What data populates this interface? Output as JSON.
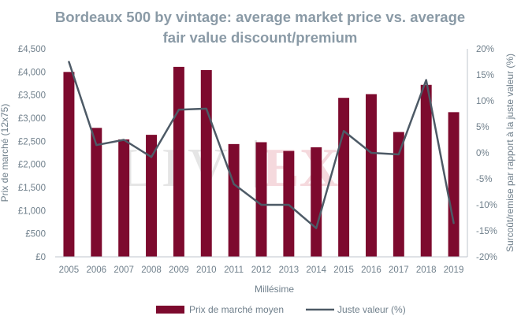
{
  "chart_data": {
    "type": "bar+line",
    "title_lines": [
      "Bordeaux 500 by vintage: average market price vs. average",
      "fair value discount/premium"
    ],
    "categories": [
      "2005",
      "2006",
      "2007",
      "2008",
      "2009",
      "2010",
      "2011",
      "2012",
      "2013",
      "2014",
      "2015",
      "2016",
      "2017",
      "2018",
      "2019"
    ],
    "series": [
      {
        "name": "Prix de marché moyen",
        "kind": "bar",
        "axis": "left",
        "color": "#7d0a2e",
        "values": [
          4000,
          2790,
          2540,
          2640,
          4110,
          4040,
          2440,
          2480,
          2290,
          2370,
          3440,
          3520,
          2700,
          3720,
          3130
        ]
      },
      {
        "name": "Juste valeur (%)",
        "kind": "line",
        "axis": "right",
        "color": "#4d5a66",
        "values": [
          17.5,
          1.5,
          2.5,
          -0.8,
          8.3,
          8.5,
          -6.0,
          -10.0,
          -10.0,
          -14.5,
          4.2,
          0.0,
          -0.3,
          14.0,
          -13.5
        ]
      }
    ],
    "xlabel": "Millésime",
    "ylabel": "Prix de marché (12x75)",
    "y2label": "Surcoût/remise par rapport à la juste valeur (%)",
    "ylim": [
      0,
      4500
    ],
    "y2lim": [
      -20,
      20
    ],
    "yticks": [
      "£0",
      "£500",
      "£1,000",
      "£1,500",
      "£2,000",
      "£2,500",
      "£3,000",
      "£3,500",
      "£4,000",
      "£4,500"
    ],
    "y2ticks": [
      "20%",
      "15%",
      "10%",
      "5%",
      "0%",
      "-5%",
      "-10%",
      "-15%",
      "-20%"
    ],
    "grid": false,
    "legend_position": "bottom",
    "watermark": "LIV-EX"
  }
}
